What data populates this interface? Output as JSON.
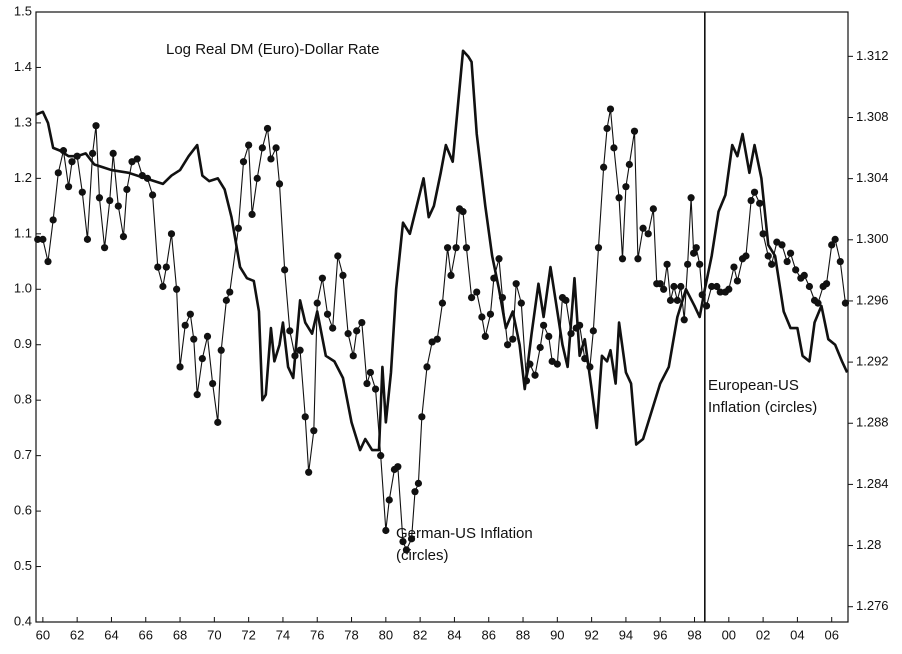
{
  "chart_data": {
    "type": "line",
    "annotations": [
      [
        "Log Real DM (Euro)-Dollar Rate"
      ],
      [
        "German-US Inflation",
        "(circles)"
      ],
      [
        "European-US",
        "Inflation (circles)"
      ]
    ],
    "xlim": [
      1959.6,
      2006.95
    ],
    "xticks": [
      {
        "value": 1960,
        "label": "60"
      },
      {
        "value": 1962,
        "label": "62"
      },
      {
        "value": 1964,
        "label": "64"
      },
      {
        "value": 1966,
        "label": "66"
      },
      {
        "value": 1968,
        "label": "68"
      },
      {
        "value": 1970,
        "label": "70"
      },
      {
        "value": 1972,
        "label": "72"
      },
      {
        "value": 1974,
        "label": "74"
      },
      {
        "value": 1976,
        "label": "76"
      },
      {
        "value": 1978,
        "label": "78"
      },
      {
        "value": 1980,
        "label": "80"
      },
      {
        "value": 1982,
        "label": "82"
      },
      {
        "value": 1984,
        "label": "84"
      },
      {
        "value": 1986,
        "label": "86"
      },
      {
        "value": 1988,
        "label": "88"
      },
      {
        "value": 1990,
        "label": "90"
      },
      {
        "value": 1992,
        "label": "92"
      },
      {
        "value": 1994,
        "label": "94"
      },
      {
        "value": 1996,
        "label": "96"
      },
      {
        "value": 1998,
        "label": "98"
      },
      {
        "value": 2000,
        "label": "00"
      },
      {
        "value": 2002,
        "label": "02"
      },
      {
        "value": 2004,
        "label": "04"
      },
      {
        "value": 2006,
        "label": "06"
      }
    ],
    "ylim": [
      0.4,
      1.5
    ],
    "yticks": [
      0.4,
      0.5,
      0.6,
      0.7,
      0.8,
      0.9,
      {
        "value": 1,
        "label": "1.0"
      },
      1.1,
      1.2,
      1.3,
      1.4,
      1.5
    ],
    "y2lim": [
      1.275,
      1.3149
    ],
    "y2ticks": [
      1.276,
      1.28,
      1.284,
      1.288,
      1.292,
      1.296,
      {
        "value": 1.3,
        "label": "1.300"
      },
      1.304,
      1.308,
      1.312
    ],
    "divider_x": 1998.6,
    "grid": false,
    "series": [
      {
        "color": "#111111",
        "marker": "none",
        "width": 2.6,
        "x": [
          1959.6,
          1960.0,
          1960.3,
          1960.6,
          1961,
          1961.5,
          1962,
          1962.5,
          1963,
          1963.5,
          1964,
          1965,
          1966,
          1966.5,
          1967,
          1967.5,
          1968,
          1968.5,
          1969,
          1969.3,
          1969.7,
          1970.2,
          1970.6,
          1971,
          1971.5,
          1971.9,
          1972.3,
          1972.6,
          1972.8,
          1973.0,
          1973.3,
          1973.5,
          1973.8,
          1974,
          1974.3,
          1974.6,
          1975,
          1975.3,
          1975.7,
          1976,
          1976.5,
          1977,
          1977.5,
          1978,
          1978.5,
          1978.8,
          1979.2,
          1979.6,
          1979.8,
          1980,
          1980.3,
          1980.6,
          1981,
          1981.4,
          1981.8,
          1982.2,
          1982.5,
          1982.8,
          1983.2,
          1983.5,
          1983.9,
          1984.2,
          1984.5,
          1984.8,
          1985.0,
          1985.3,
          1985.8,
          1986.2,
          1986.6,
          1987,
          1987.4,
          1987.8,
          1988.1,
          1988.5,
          1988.9,
          1989.2,
          1989.6,
          1990,
          1990.3,
          1990.6,
          1991,
          1991.3,
          1991.6,
          1992,
          1992.3,
          1992.6,
          1992.9,
          1993.1,
          1993.4,
          1993.6,
          1994,
          1994.3,
          1994.6,
          1995,
          1995.5,
          1996,
          1996.5,
          1997,
          1997.5,
          1998,
          1998.3,
          1998.6,
          1999,
          1999.4,
          1999.8,
          2000.2,
          2000.5,
          2000.8,
          2001.2,
          2001.5,
          2001.9,
          2002.3,
          2002.7,
          2003.2,
          2003.6,
          2004,
          2004.3,
          2004.7,
          2005,
          2005.4,
          2005.8,
          2006.2,
          2006.6,
          2006.9
        ],
        "values": [
          1.315,
          1.32,
          1.3,
          1.255,
          1.25,
          1.24,
          1.24,
          1.245,
          1.225,
          1.22,
          1.215,
          1.21,
          1.2,
          1.195,
          1.19,
          1.205,
          1.215,
          1.24,
          1.26,
          1.205,
          1.195,
          1.2,
          1.18,
          1.13,
          1.04,
          1.02,
          1.015,
          0.96,
          0.8,
          0.81,
          0.93,
          0.87,
          0.9,
          0.94,
          0.86,
          0.84,
          0.98,
          0.94,
          0.92,
          0.96,
          0.88,
          0.87,
          0.84,
          0.76,
          0.71,
          0.73,
          0.71,
          0.71,
          0.86,
          0.76,
          0.85,
          1.0,
          1.12,
          1.1,
          1.15,
          1.2,
          1.13,
          1.15,
          1.21,
          1.26,
          1.23,
          1.33,
          1.43,
          1.42,
          1.41,
          1.28,
          1.15,
          1.06,
          1.0,
          0.93,
          0.96,
          0.9,
          0.82,
          0.92,
          1.01,
          0.95,
          1.04,
          0.96,
          0.9,
          0.86,
          1.02,
          0.88,
          0.91,
          0.82,
          0.75,
          0.88,
          0.87,
          0.89,
          0.83,
          0.94,
          0.85,
          0.83,
          0.72,
          0.73,
          0.78,
          0.83,
          0.86,
          0.95,
          1.0,
          0.97,
          0.95,
          1.0,
          1.06,
          1.14,
          1.17,
          1.26,
          1.24,
          1.28,
          1.21,
          1.26,
          1.2,
          1.08,
          1.06,
          0.96,
          0.93,
          0.93,
          0.88,
          0.87,
          0.94,
          0.97,
          0.91,
          0.9,
          0.87,
          0.85
        ]
      },
      {
        "color": "#111111",
        "marker": "circle",
        "width": 1.1,
        "x": [
          1959.7,
          1960.0,
          1960.3,
          1960.6,
          1960.9,
          1961.2,
          1961.5,
          1961.7,
          1962,
          1962.3,
          1962.6,
          1962.9,
          1963.1,
          1963.3,
          1963.6,
          1963.9,
          1964.1,
          1964.4,
          1964.7,
          1964.9,
          1965.2,
          1965.5,
          1965.8,
          1966.1,
          1966.4,
          1966.7,
          1967,
          1967.2,
          1967.5,
          1967.8,
          1968.0,
          1968.3,
          1968.6,
          1968.8,
          1969,
          1969.3,
          1969.6,
          1969.9,
          1970.2,
          1970.4,
          1970.7,
          1970.9,
          1971.4,
          1971.7,
          1972,
          1972.2,
          1972.5,
          1972.8,
          1973.1,
          1973.3,
          1973.6,
          1973.8,
          1974.1,
          1974.4,
          1974.7,
          1975,
          1975.3,
          1975.5,
          1975.8,
          1976.0,
          1976.3,
          1976.6,
          1976.9,
          1977.2,
          1977.5,
          1977.8,
          1978.1,
          1978.3,
          1978.6,
          1978.9,
          1979.1,
          1979.4,
          1979.7,
          1980,
          1980.2,
          1980.5,
          1980.7,
          1981,
          1981.2,
          1981.5,
          1981.7,
          1981.9,
          1982.1,
          1982.4,
          1982.7,
          1983,
          1983.3,
          1983.6,
          1983.8,
          1984.1,
          1984.3,
          1984.5,
          1984.7,
          1985,
          1985.3,
          1985.6,
          1985.8,
          1986.1,
          1986.3,
          1986.6,
          1986.8,
          1987.1,
          1987.4,
          1987.6,
          1987.9,
          1988.2,
          1988.4,
          1988.7,
          1989,
          1989.2,
          1989.5,
          1989.7,
          1990,
          1990.3,
          1990.5,
          1990.8,
          1991.1,
          1991.3,
          1991.6,
          1991.9,
          1992.1,
          1992.4,
          1992.7,
          1992.9,
          1993.1,
          1993.3,
          1993.6,
          1993.8,
          1994.0,
          1994.2,
          1994.5,
          1994.7,
          1995,
          1995.3,
          1995.6,
          1995.8,
          1996.0,
          1996.2,
          1996.4,
          1996.6,
          1996.8,
          1997.0,
          1997.2,
          1997.4,
          1997.6,
          1997.8,
          1997.95,
          1998.1,
          1998.3,
          1998.45,
          1998.7,
          1999.0,
          1999.3,
          1999.5,
          1999.8,
          2000.0,
          2000.3,
          2000.5,
          2000.8,
          2001.0,
          2001.3,
          2001.5,
          2001.8,
          2002.0,
          2002.3,
          2002.5,
          2002.8,
          2003.1,
          2003.4,
          2003.6,
          2003.9,
          2004.2,
          2004.4,
          2004.7,
          2005.0,
          2005.2,
          2005.5,
          2005.7,
          2006.0,
          2006.2,
          2006.5,
          2006.8
        ],
        "values": [
          1.09,
          1.09,
          1.05,
          1.125,
          1.21,
          1.25,
          1.185,
          1.23,
          1.24,
          1.175,
          1.09,
          1.245,
          1.295,
          1.165,
          1.075,
          1.16,
          1.245,
          1.15,
          1.095,
          1.18,
          1.23,
          1.235,
          1.205,
          1.2,
          1.17,
          1.04,
          1.005,
          1.04,
          1.1,
          1.0,
          0.86,
          0.935,
          0.955,
          0.91,
          0.81,
          0.875,
          0.915,
          0.83,
          0.76,
          0.89,
          0.98,
          0.995,
          1.11,
          1.23,
          1.26,
          1.135,
          1.2,
          1.255,
          1.29,
          1.235,
          1.255,
          1.19,
          1.035,
          0.925,
          0.88,
          0.89,
          0.77,
          0.67,
          0.745,
          0.975,
          1.02,
          0.955,
          0.93,
          1.06,
          1.025,
          0.92,
          0.88,
          0.925,
          0.94,
          0.83,
          0.85,
          0.82,
          0.7,
          0.565,
          0.62,
          0.675,
          0.68,
          0.545,
          0.53,
          0.55,
          0.635,
          0.65,
          0.77,
          0.86,
          0.905,
          0.91,
          0.975,
          1.075,
          1.025,
          1.075,
          1.145,
          1.14,
          1.075,
          0.985,
          0.995,
          0.95,
          0.915,
          0.955,
          1.02,
          1.055,
          0.985,
          0.9,
          0.91,
          1.01,
          0.975,
          0.835,
          0.865,
          0.845,
          0.895,
          0.935,
          0.915,
          0.87,
          0.865,
          0.985,
          0.98,
          0.92,
          0.93,
          0.935,
          0.875,
          0.86,
          0.925,
          1.075,
          1.22,
          1.29,
          1.325,
          1.255,
          1.165,
          1.055,
          1.185,
          1.225,
          1.285,
          1.055,
          1.11,
          1.1,
          1.145,
          1.01,
          1.01,
          1.0,
          1.045,
          0.98,
          1.005,
          0.98,
          1.005,
          0.945,
          1.045,
          1.165,
          1.065,
          1.075,
          1.045,
          0.99,
          0.97,
          1.005,
          1.005,
          0.995,
          0.995,
          1.0,
          1.04,
          1.015,
          1.055,
          1.06,
          1.16,
          1.175,
          1.155,
          1.1,
          1.06,
          1.045,
          1.085,
          1.08,
          1.05,
          1.065,
          1.035,
          1.02,
          1.025,
          1.005,
          0.98,
          0.975,
          1.005,
          1.01,
          1.08,
          1.09,
          1.05,
          0.975
        ]
      }
    ]
  }
}
